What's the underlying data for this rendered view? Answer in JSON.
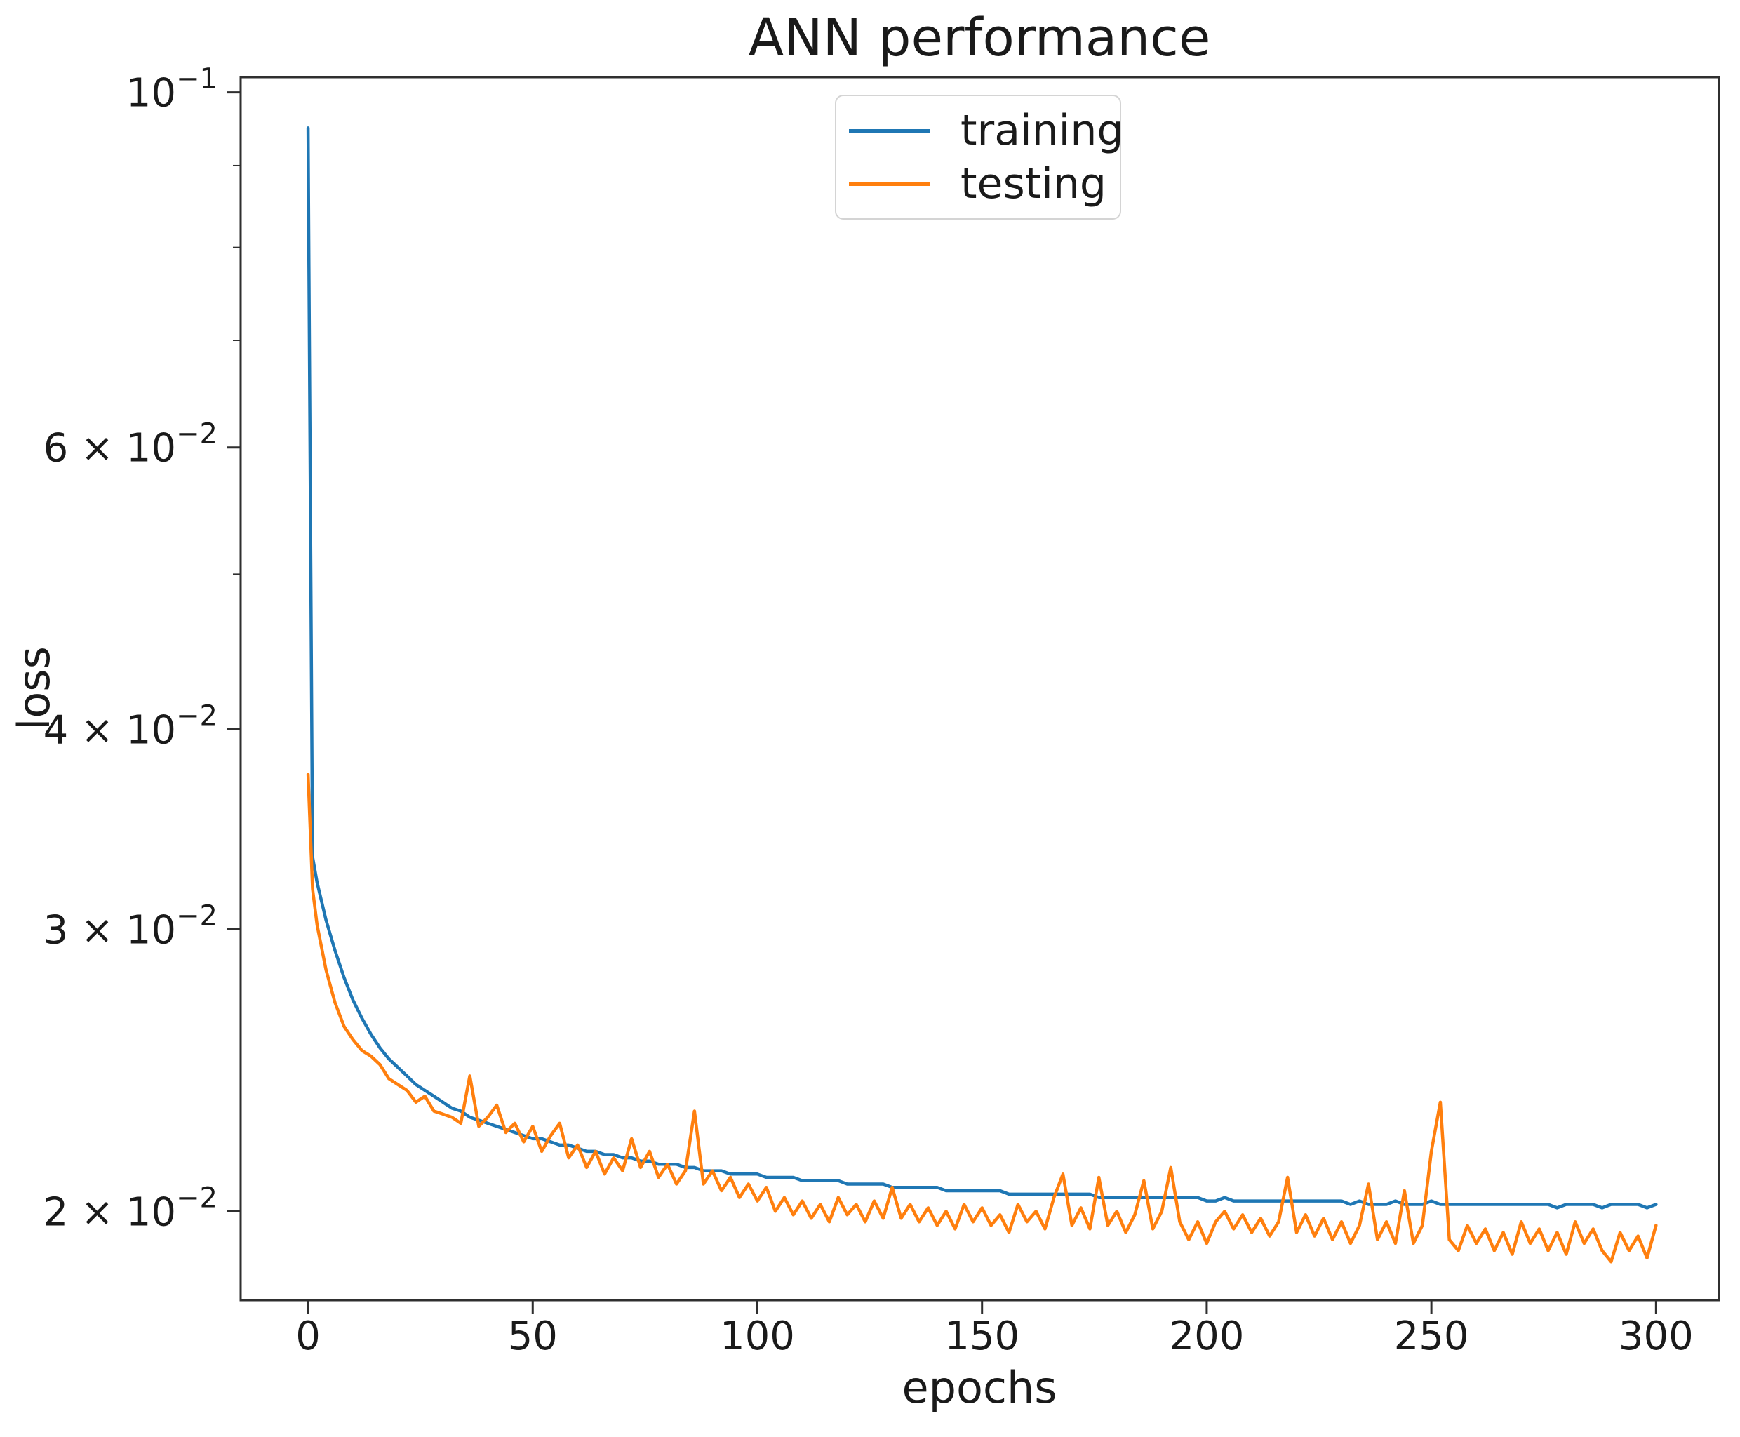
{
  "legend": {
    "items": [
      {
        "label": "training",
        "color": "#1f77b4"
      },
      {
        "label": "testing",
        "color": "#ff7f0e"
      }
    ]
  },
  "axes": {
    "x_ticks": [
      0,
      50,
      100,
      150,
      200,
      250,
      300
    ],
    "y_ticks": [
      {
        "value": 0.1,
        "label": "10⁻¹",
        "mantissa": "",
        "exponent": "−1"
      },
      {
        "value": 0.06,
        "label": "6 × 10⁻²",
        "mantissa": "6 × ",
        "exponent": "−2"
      },
      {
        "value": 0.04,
        "label": "4 × 10⁻²",
        "mantissa": "4 × ",
        "exponent": "−2"
      },
      {
        "value": 0.03,
        "label": "3 × 10⁻²",
        "mantissa": "3 × ",
        "exponent": "−2"
      },
      {
        "value": 0.02,
        "label": "2 × 10⁻²",
        "mantissa": "2 × ",
        "exponent": "−2"
      }
    ],
    "y_minor_ticks": [
      0.09,
      0.08,
      0.07,
      0.05
    ],
    "spine_color": "#2f2f2f",
    "text_color": "#1a1a1a"
  },
  "chart_data": {
    "type": "line",
    "title": "ANN performance",
    "xlabel": "epochs",
    "ylabel": "loss",
    "x_scale": "linear",
    "y_scale": "log",
    "xlim": [
      -15,
      314
    ],
    "ylim": [
      0.0176,
      0.1022
    ],
    "grid": false,
    "legend_position": "upper center",
    "x": [
      0,
      1,
      2,
      4,
      6,
      8,
      10,
      12,
      14,
      16,
      18,
      20,
      22,
      24,
      26,
      28,
      30,
      32,
      34,
      36,
      38,
      40,
      42,
      44,
      46,
      48,
      50,
      52,
      54,
      56,
      58,
      60,
      62,
      64,
      66,
      68,
      70,
      72,
      74,
      76,
      78,
      80,
      82,
      84,
      86,
      88,
      90,
      92,
      94,
      96,
      98,
      100,
      102,
      104,
      106,
      108,
      110,
      112,
      114,
      116,
      118,
      120,
      122,
      124,
      126,
      128,
      130,
      132,
      134,
      136,
      138,
      140,
      142,
      144,
      146,
      148,
      150,
      152,
      154,
      156,
      158,
      160,
      162,
      164,
      166,
      168,
      170,
      172,
      174,
      176,
      178,
      180,
      182,
      184,
      186,
      188,
      190,
      192,
      194,
      196,
      198,
      200,
      202,
      204,
      206,
      208,
      210,
      212,
      214,
      216,
      218,
      220,
      222,
      224,
      226,
      228,
      230,
      232,
      234,
      236,
      238,
      240,
      242,
      244,
      246,
      248,
      250,
      252,
      254,
      256,
      258,
      260,
      262,
      264,
      266,
      268,
      270,
      272,
      274,
      276,
      278,
      280,
      282,
      284,
      286,
      288,
      290,
      292,
      294,
      296,
      298,
      300
    ],
    "series": [
      {
        "name": "training",
        "color": "#1f77b4",
        "values": [
          0.095,
          0.0333,
          0.0321,
          0.0304,
          0.0291,
          0.028,
          0.0271,
          0.0264,
          0.0258,
          0.0253,
          0.0249,
          0.0246,
          0.0243,
          0.024,
          0.0238,
          0.0236,
          0.0234,
          0.0232,
          0.0231,
          0.0229,
          0.0228,
          0.0227,
          0.0226,
          0.0225,
          0.0224,
          0.0223,
          0.0222,
          0.0222,
          0.0221,
          0.022,
          0.022,
          0.0219,
          0.0218,
          0.0218,
          0.0217,
          0.0217,
          0.0216,
          0.0216,
          0.0215,
          0.0215,
          0.0214,
          0.0214,
          0.0214,
          0.0213,
          0.0213,
          0.0212,
          0.0212,
          0.0212,
          0.0211,
          0.0211,
          0.0211,
          0.0211,
          0.021,
          0.021,
          0.021,
          0.021,
          0.0209,
          0.0209,
          0.0209,
          0.0209,
          0.0209,
          0.0208,
          0.0208,
          0.0208,
          0.0208,
          0.0208,
          0.0207,
          0.0207,
          0.0207,
          0.0207,
          0.0207,
          0.0207,
          0.0206,
          0.0206,
          0.0206,
          0.0206,
          0.0206,
          0.0206,
          0.0206,
          0.0205,
          0.0205,
          0.0205,
          0.0205,
          0.0205,
          0.0205,
          0.0205,
          0.0205,
          0.0205,
          0.0205,
          0.0204,
          0.0204,
          0.0204,
          0.0204,
          0.0204,
          0.0204,
          0.0204,
          0.0204,
          0.0204,
          0.0204,
          0.0204,
          0.0204,
          0.0203,
          0.0203,
          0.0204,
          0.0203,
          0.0203,
          0.0203,
          0.0203,
          0.0203,
          0.0203,
          0.0203,
          0.0203,
          0.0203,
          0.0203,
          0.0203,
          0.0203,
          0.0203,
          0.0202,
          0.0203,
          0.0202,
          0.0202,
          0.0202,
          0.0203,
          0.0202,
          0.0202,
          0.0202,
          0.0203,
          0.0202,
          0.0202,
          0.0202,
          0.0202,
          0.0202,
          0.0202,
          0.0202,
          0.0202,
          0.0202,
          0.0202,
          0.0202,
          0.0202,
          0.0202,
          0.0201,
          0.0202,
          0.0202,
          0.0202,
          0.0202,
          0.0201,
          0.0202,
          0.0202,
          0.0202,
          0.0202,
          0.0201,
          0.0202
        ]
      },
      {
        "name": "testing",
        "color": "#ff7f0e",
        "values": [
          0.0375,
          0.0318,
          0.0302,
          0.0283,
          0.027,
          0.0261,
          0.0256,
          0.0252,
          0.025,
          0.0247,
          0.0242,
          0.024,
          0.0238,
          0.0234,
          0.0236,
          0.0231,
          0.023,
          0.0229,
          0.0227,
          0.0243,
          0.0226,
          0.0229,
          0.0233,
          0.0224,
          0.0227,
          0.0221,
          0.0226,
          0.0218,
          0.0223,
          0.0227,
          0.0216,
          0.022,
          0.0213,
          0.0218,
          0.0211,
          0.0216,
          0.0212,
          0.0222,
          0.0213,
          0.0218,
          0.021,
          0.0214,
          0.0208,
          0.0212,
          0.0231,
          0.0208,
          0.0212,
          0.0206,
          0.021,
          0.0204,
          0.0208,
          0.0203,
          0.0207,
          0.02,
          0.0204,
          0.0199,
          0.0203,
          0.0198,
          0.0202,
          0.0197,
          0.0204,
          0.0199,
          0.0202,
          0.0197,
          0.0203,
          0.0198,
          0.0207,
          0.0198,
          0.0202,
          0.0197,
          0.0201,
          0.0196,
          0.02,
          0.0195,
          0.0202,
          0.0197,
          0.0201,
          0.0196,
          0.0199,
          0.0194,
          0.0202,
          0.0197,
          0.02,
          0.0195,
          0.0204,
          0.0211,
          0.0196,
          0.0201,
          0.0195,
          0.021,
          0.0196,
          0.02,
          0.0194,
          0.0199,
          0.0209,
          0.0195,
          0.02,
          0.0213,
          0.0197,
          0.0192,
          0.0197,
          0.0191,
          0.0197,
          0.02,
          0.0195,
          0.0199,
          0.0194,
          0.0198,
          0.0193,
          0.0197,
          0.021,
          0.0194,
          0.0199,
          0.0193,
          0.0198,
          0.0192,
          0.0197,
          0.0191,
          0.0196,
          0.0208,
          0.0192,
          0.0197,
          0.0191,
          0.0206,
          0.0191,
          0.0196,
          0.0218,
          0.0234,
          0.0192,
          0.0189,
          0.0196,
          0.0191,
          0.0195,
          0.0189,
          0.0194,
          0.0188,
          0.0197,
          0.0191,
          0.0195,
          0.0189,
          0.0194,
          0.0188,
          0.0197,
          0.0191,
          0.0195,
          0.0189,
          0.0186,
          0.0194,
          0.0189,
          0.0193,
          0.0187,
          0.0196
        ]
      }
    ]
  }
}
